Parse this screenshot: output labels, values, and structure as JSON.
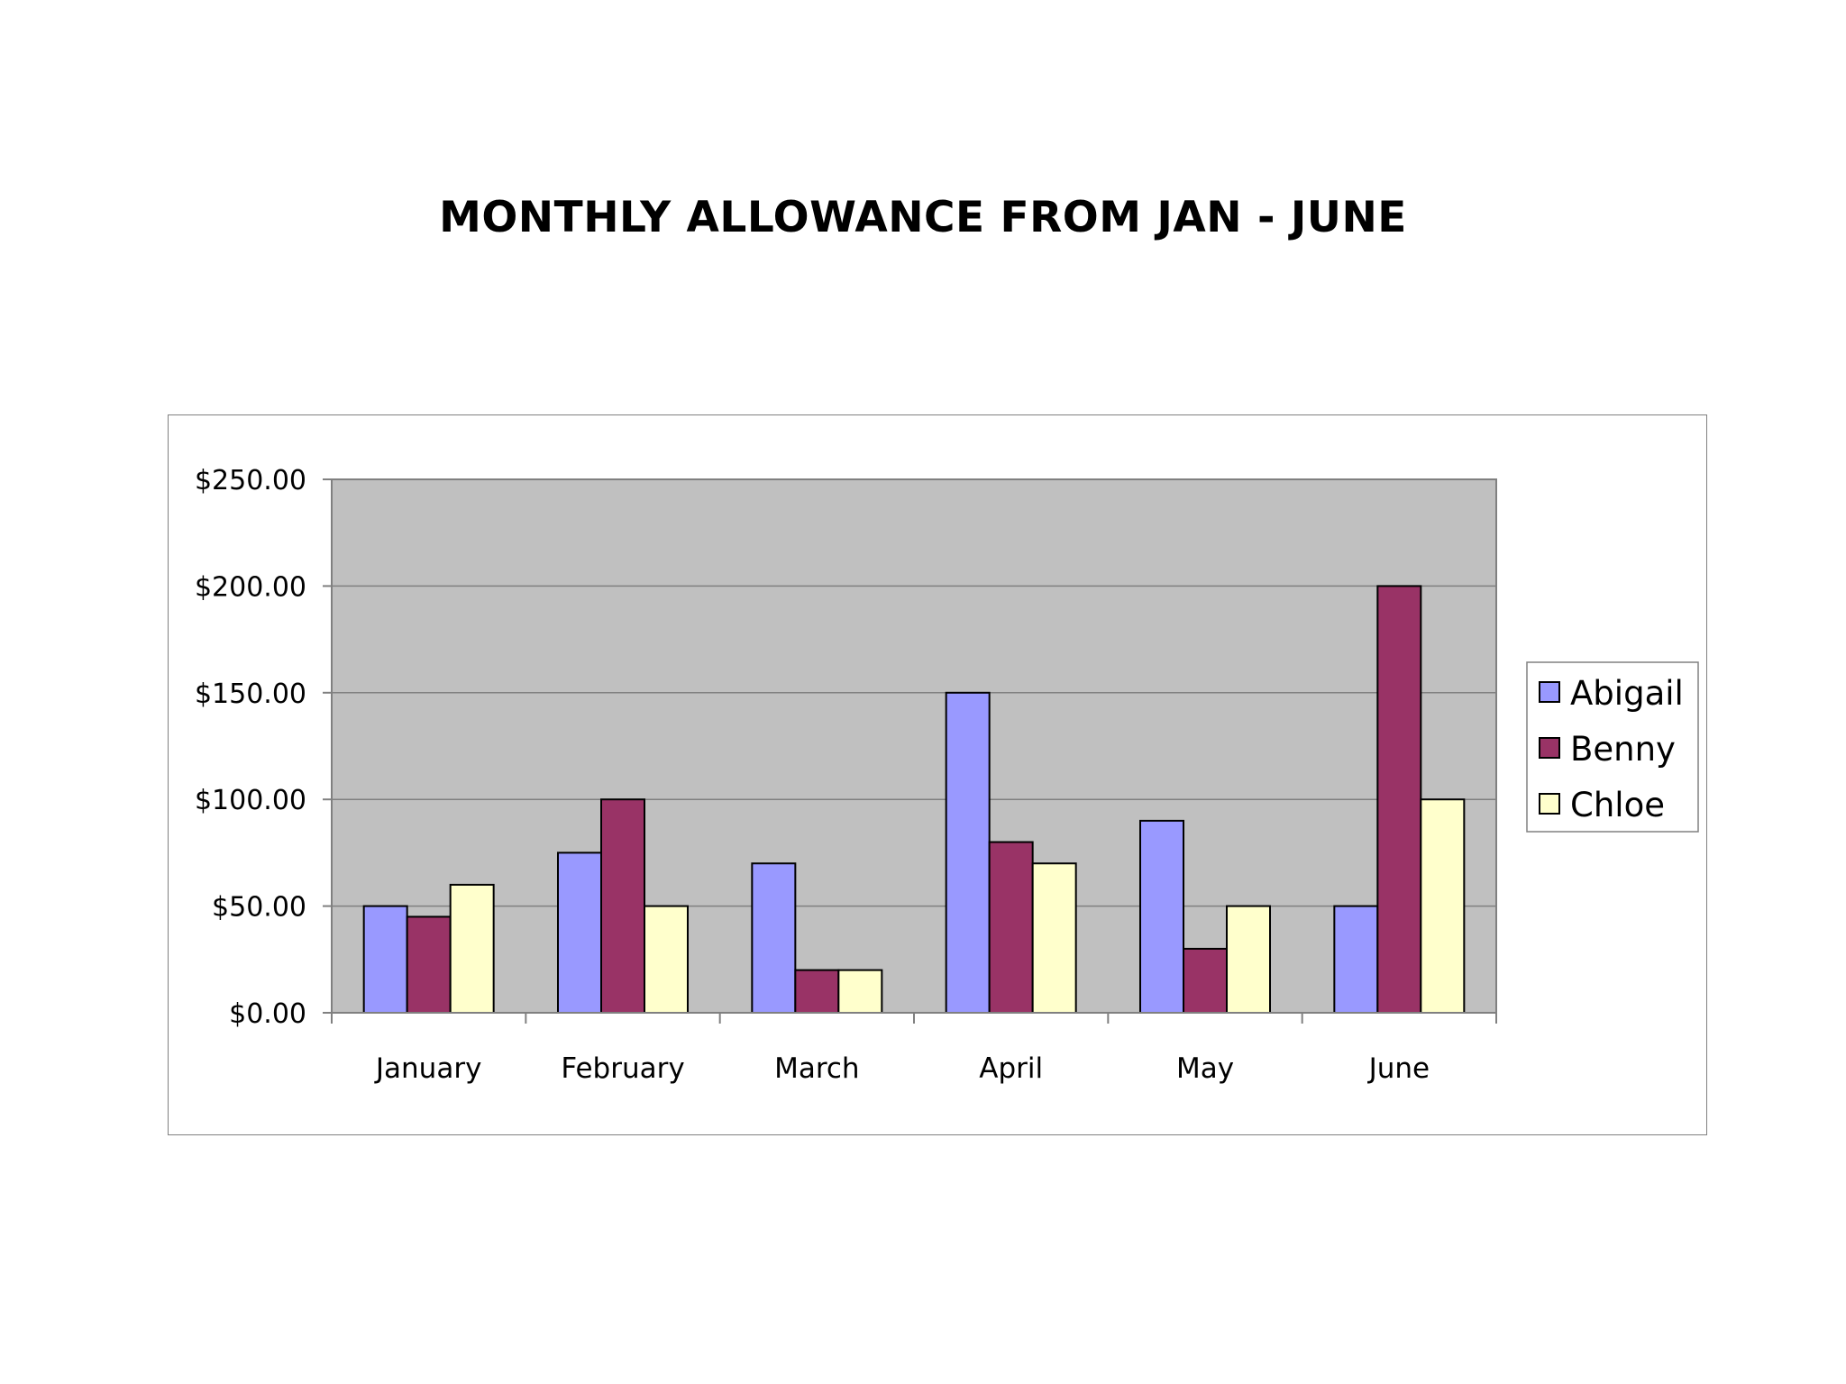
{
  "chart_data": {
    "type": "bar",
    "title": "MONTHLY ALLOWANCE FROM JAN - JUNE",
    "xlabel": "",
    "ylabel": "",
    "categories": [
      "January",
      "February",
      "March",
      "April",
      "May",
      "June"
    ],
    "series": [
      {
        "name": "Abigail",
        "color": "#9999ff",
        "values": [
          50,
          75,
          70,
          150,
          90,
          50
        ]
      },
      {
        "name": "Benny",
        "color": "#993366",
        "values": [
          45,
          100,
          20,
          80,
          30,
          200
        ]
      },
      {
        "name": "Chloe",
        "color": "#ffffcc",
        "values": [
          60,
          50,
          20,
          70,
          50,
          100
        ]
      }
    ],
    "ylim": [
      0,
      250
    ],
    "yticks": [
      0,
      50,
      100,
      150,
      200,
      250
    ],
    "ytick_labels": [
      "$0.00",
      "$50.00",
      "$100.00",
      "$150.00",
      "$200.00",
      "$250.00"
    ],
    "grid": true,
    "plot_background": "#c0c0c0",
    "legend_position": "right"
  }
}
